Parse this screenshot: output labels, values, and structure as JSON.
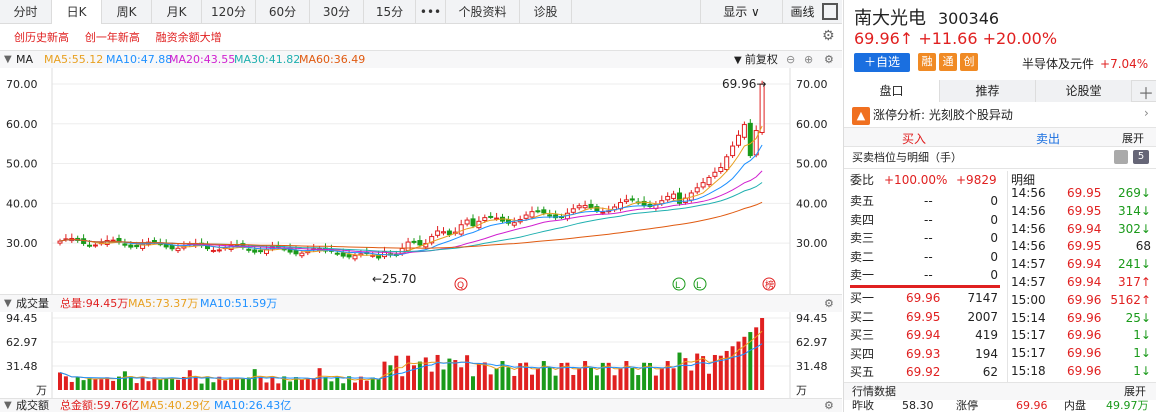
{
  "tabs": [
    "分时",
    "日K",
    "周K",
    "月K",
    "120分",
    "60分",
    "30分",
    "15分",
    "•••",
    "个股资料",
    "诊股"
  ],
  "active_tab": "日K",
  "display_label": "显示 ∨",
  "draw_label": "画线",
  "badges": [
    "创历史新高",
    "创一年新高",
    "融资余额大增"
  ],
  "ma": {
    "label": "MA",
    "ma5": "MA5:55.12",
    "ma10": "MA10:47.88",
    "ma20": "MA20:43.55",
    "ma30": "MA30:41.82",
    "ma60": "MA60:36.49"
  },
  "fq": "前复权",
  "price_axis": [
    "70.00",
    "60.00",
    "50.00",
    "40.00",
    "30.00"
  ],
  "high_label": "69.96→",
  "low_label": "←25.70",
  "markers": {
    "q": "Q",
    "l": "L",
    "bang": "榜"
  },
  "vol": {
    "label": "成交量",
    "total": "总量:94.45万",
    "ma5": "MA5:73.37万",
    "ma10": "MA10:51.59万",
    "axis": [
      "94.45",
      "62.97",
      "31.48",
      "万"
    ]
  },
  "amt": {
    "label": "成交额",
    "total": "总金额:59.76亿",
    "ma5": "MA5:40.29亿",
    "ma10": "MA10:26.43亿"
  },
  "stock": {
    "name": "南大光电",
    "code": "300346",
    "price": "69.96↑",
    "change": "+11.66",
    "pct": "+20.00%",
    "add": "＋自选",
    "tags": [
      "融",
      "通",
      "创"
    ],
    "sector": "半导体及元件",
    "sector_pct": "+7.04%"
  },
  "side_tabs": [
    "盘口",
    "推荐",
    "论股堂"
  ],
  "limit": {
    "label": "涨停分析:",
    "text": "光刻胶个股异动"
  },
  "buy": "买入",
  "sell": "卖出",
  "expand": "展开",
  "book_title": "买卖档位与明细（手）",
  "book_count": "5",
  "wb": {
    "label": "委比",
    "pct": "+100.00%",
    "diff": "+9829"
  },
  "detail_title": "明细",
  "asks": [
    {
      "n": "卖五",
      "p": "--",
      "v": "0"
    },
    {
      "n": "卖四",
      "p": "--",
      "v": "0"
    },
    {
      "n": "卖三",
      "p": "--",
      "v": "0"
    },
    {
      "n": "卖二",
      "p": "--",
      "v": "0"
    },
    {
      "n": "卖一",
      "p": "--",
      "v": "0"
    }
  ],
  "bids": [
    {
      "n": "买一",
      "p": "69.96",
      "v": "7147"
    },
    {
      "n": "买二",
      "p": "69.95",
      "v": "2007"
    },
    {
      "n": "买三",
      "p": "69.94",
      "v": "419"
    },
    {
      "n": "买四",
      "p": "69.93",
      "v": "194"
    },
    {
      "n": "买五",
      "p": "69.92",
      "v": "62"
    }
  ],
  "ticks": [
    {
      "t": "14:56",
      "p": "69.95",
      "v": "269↓",
      "c": "g"
    },
    {
      "t": "14:56",
      "p": "69.95",
      "v": "314↓",
      "c": "g"
    },
    {
      "t": "14:56",
      "p": "69.94",
      "v": "302↓",
      "c": "g"
    },
    {
      "t": "14:56",
      "p": "69.95",
      "v": "68",
      "c": "k"
    },
    {
      "t": "14:57",
      "p": "69.94",
      "v": "241↓",
      "c": "g"
    },
    {
      "t": "14:57",
      "p": "69.94",
      "v": "317↑",
      "c": "r"
    },
    {
      "t": "15:00",
      "p": "69.96",
      "v": "5162↑",
      "c": "r"
    },
    {
      "t": "15:14",
      "p": "69.96",
      "v": "25↓",
      "c": "g"
    },
    {
      "t": "15:17",
      "p": "69.96",
      "v": "1↓",
      "c": "g"
    },
    {
      "t": "15:17",
      "p": "69.96",
      "v": "1↓",
      "c": "g"
    },
    {
      "t": "15:18",
      "p": "69.96",
      "v": "1↓",
      "c": "g"
    }
  ],
  "quote_title": "行情数据",
  "quote_row": {
    "a": "昨收",
    "b": "58.30",
    "c": "涨停",
    "d": "69.96",
    "e": "内盘",
    "f": "49.97万"
  },
  "colors": {
    "up": "#e02020",
    "down": "#1a9a1a",
    "accent": "#1a6fe0",
    "ma5": "#e8a020",
    "ma10": "#1e90ff",
    "ma20": "#d020d0",
    "ma30": "#20b0b0",
    "ma60": "#e05a10"
  }
}
